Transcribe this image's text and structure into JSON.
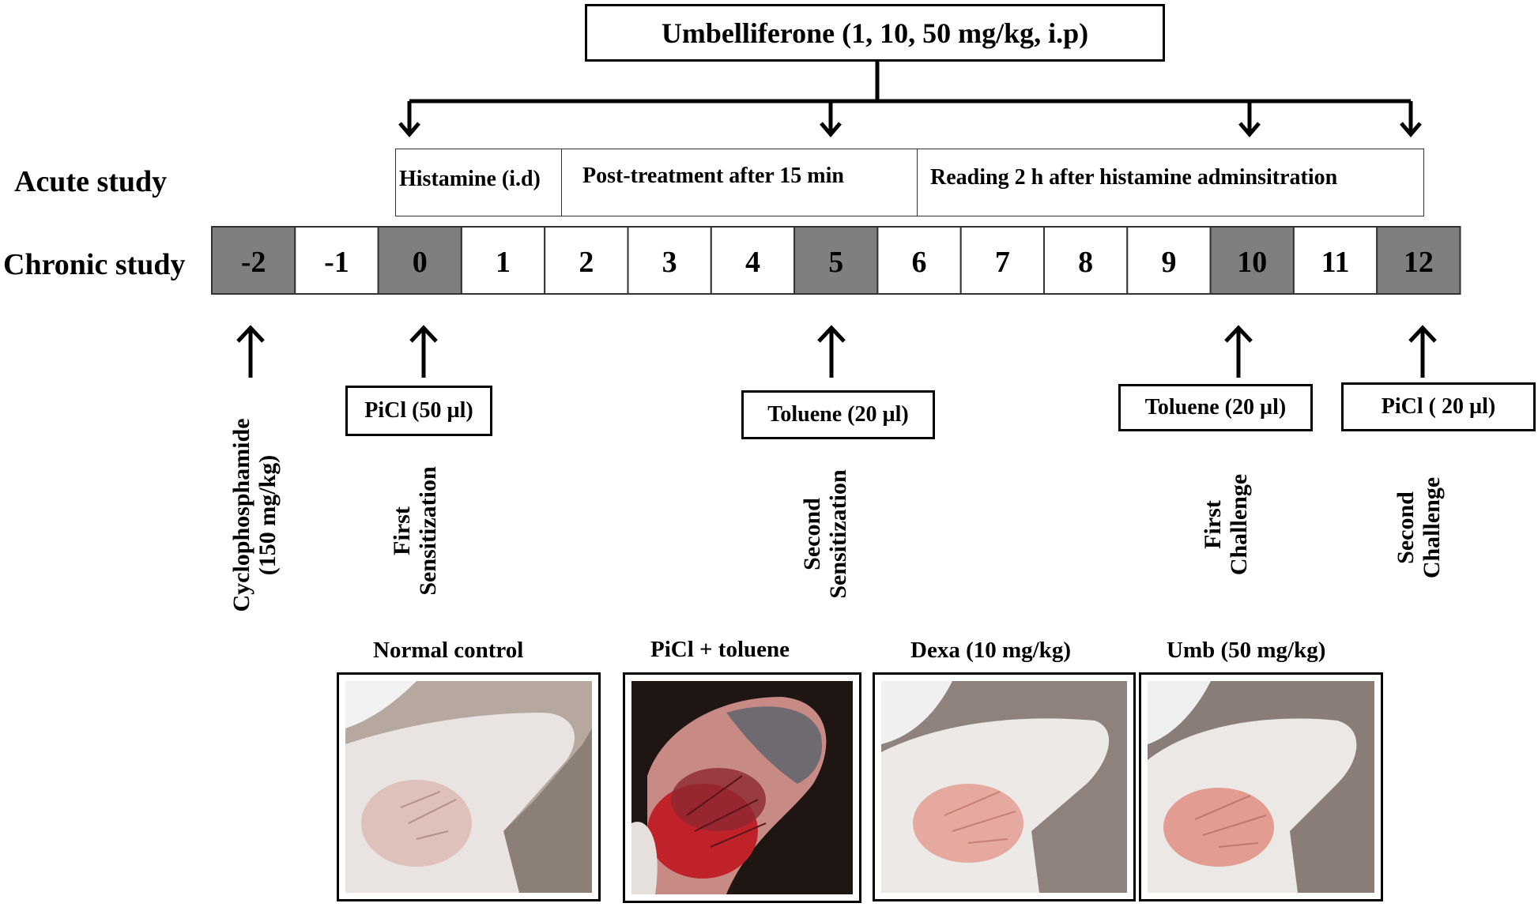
{
  "top_box": "Umbelliferone (1, 10, 50 mg/kg, i.p)",
  "acute": {
    "row_label": "Acute study",
    "segments": [
      "Histamine (i.d)",
      "Post-treatment after 15 min",
      "Reading 2 h after histamine adminsitration"
    ]
  },
  "chronic": {
    "row_label": "Chronic study",
    "days": [
      "-2",
      "-1",
      "0",
      "1",
      "2",
      "3",
      "4",
      "5",
      "6",
      "7",
      "8",
      "9",
      "10",
      "11",
      "12"
    ],
    "highlighted_days": [
      "-2",
      "0",
      "5",
      "10",
      "12"
    ],
    "highlight_color": "#7f7f7f"
  },
  "events": [
    {
      "day": "-2",
      "agent": "",
      "label": "Cyclophosphamide\n(150 mg/kg)"
    },
    {
      "day": "0",
      "agent": "PiCl (50 µl)",
      "label": "First\nSensitization"
    },
    {
      "day": "5",
      "agent": "Toluene (20 µl)",
      "label": "Second\nSensitization"
    },
    {
      "day": "10",
      "agent": "Toluene (20 µl)",
      "label": "First\nChallenge"
    },
    {
      "day": "12",
      "agent": "PiCl ( 20 µl)",
      "label": "Second\nChallenge"
    }
  ],
  "photos": [
    {
      "caption": "Normal control",
      "kind": "normal"
    },
    {
      "caption": "PiCl + toluene",
      "kind": "inflamed"
    },
    {
      "caption": "Dexa (10 mg/kg)",
      "kind": "dexa"
    },
    {
      "caption": "Umb (50 mg/kg)",
      "kind": "umb"
    }
  ]
}
